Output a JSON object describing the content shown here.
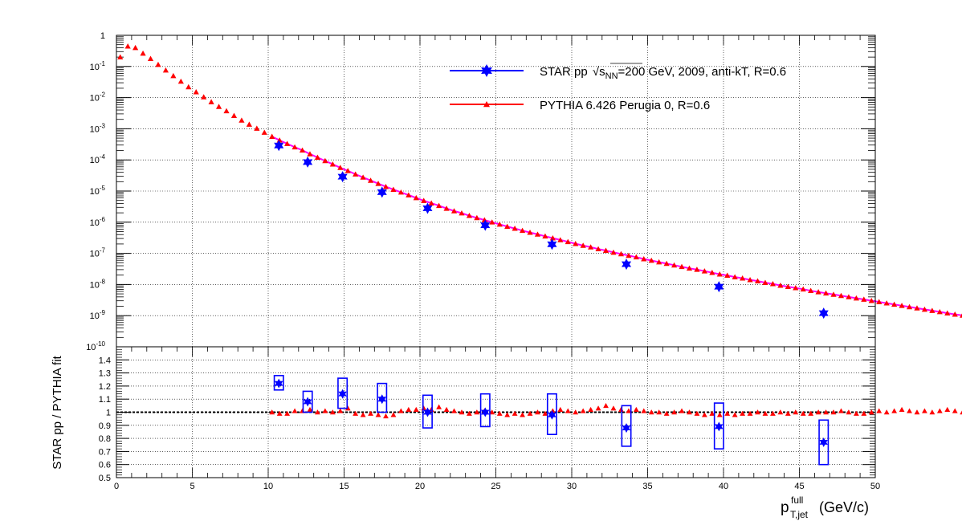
{
  "chart_data": [
    {
      "panel": "top",
      "type": "scatter",
      "title": "",
      "xlabel": "",
      "ylabel": "",
      "xlim": [
        0,
        50
      ],
      "ylim": [
        1e-10,
        1
      ],
      "yscale": "log",
      "grid": true,
      "legend_position": "top-right",
      "y_tick_labels": [
        {
          "value": 1,
          "base": "1",
          "exp": ""
        },
        {
          "value": 0.1,
          "base": "10",
          "exp": "-1"
        },
        {
          "value": 0.01,
          "base": "10",
          "exp": "-2"
        },
        {
          "value": 0.001,
          "base": "10",
          "exp": "-3"
        },
        {
          "value": 0.0001,
          "base": "10",
          "exp": "-4"
        },
        {
          "value": 1e-05,
          "base": "10",
          "exp": "-5"
        },
        {
          "value": 1e-06,
          "base": "10",
          "exp": "-6"
        },
        {
          "value": 1e-07,
          "base": "10",
          "exp": "-7"
        },
        {
          "value": 1e-08,
          "base": "10",
          "exp": "-8"
        },
        {
          "value": 1e-09,
          "base": "10",
          "exp": "-9"
        },
        {
          "value": 1e-10,
          "base": "10",
          "exp": "-10"
        }
      ],
      "legend": [
        {
          "series": "STAR",
          "prefix": "STAR pp ",
          "sqrt_s": "s",
          "sub": "NN",
          "suffix": "=200 GeV, 2009, anti-kT, R=0.6"
        },
        {
          "series": "PYTHIA",
          "label": "PYTHIA 6.426 Perugia 0, R=0.6"
        }
      ],
      "series": [
        {
          "name": "STAR pp 200 GeV 2009",
          "color": "#0000ff",
          "marker": "star",
          "x": [
            10.7,
            12.6,
            14.9,
            17.5,
            20.5,
            24.3,
            28.7,
            33.6,
            39.7,
            46.6
          ],
          "y": [
            0.00029,
            8.5e-05,
            2.9e-05,
            9.2e-06,
            2.8e-06,
            8e-07,
            1.95e-07,
            4.5e-08,
            8.5e-09,
            1.2e-09
          ]
        },
        {
          "name": "PYTHIA 6.426 Perugia 0",
          "color": "#ff0000",
          "line_color": "#ff00ff",
          "marker": "triangle",
          "x_start": 0.25,
          "x_step": 0.5,
          "log_y": [
            -0.7,
            -0.35,
            -0.4,
            -0.58,
            -0.75,
            -0.94,
            -1.12,
            -1.3,
            -1.48,
            -1.66,
            -1.82,
            -1.98,
            -2.14,
            -2.29,
            -2.43,
            -2.58,
            -2.73,
            -2.86,
            -2.99,
            -3.12,
            -3.25,
            -3.37,
            -3.48,
            -3.59,
            -3.69,
            -3.81,
            -3.92,
            -4.03,
            -4.14,
            -4.25,
            -4.35,
            -4.46,
            -4.56,
            -4.66,
            -4.76,
            -4.86,
            -4.95,
            -5.04,
            -5.13,
            -5.22,
            -5.31,
            -5.39,
            -5.47,
            -5.56,
            -5.64,
            -5.71,
            -5.79,
            -5.86,
            -5.93,
            -6.0,
            -6.07,
            -6.14,
            -6.2,
            -6.27,
            -6.33,
            -6.39,
            -6.45,
            -6.51,
            -6.57,
            -6.63,
            -6.69,
            -6.75,
            -6.8,
            -6.86,
            -6.91,
            -6.97,
            -7.02,
            -7.07,
            -7.12,
            -7.18,
            -7.23,
            -7.28,
            -7.33,
            -7.38,
            -7.43,
            -7.48,
            -7.52,
            -7.57,
            -7.62,
            -7.67,
            -7.71,
            -7.76,
            -7.8,
            -7.85,
            -7.89,
            -7.94,
            -7.98,
            -8.03,
            -8.07,
            -8.11,
            -8.15,
            -8.2,
            -8.24,
            -8.28,
            -8.32,
            -8.36,
            -8.4,
            -8.44,
            -8.48,
            -8.52,
            -8.56,
            -8.6,
            -8.64,
            -8.68,
            -8.72,
            -8.76,
            -8.8,
            -8.84,
            -8.88,
            -8.92,
            -8.96,
            -8.99,
            -9.03,
            -9.07,
            -9.11,
            -9.14,
            -9.18,
            -9.22,
            -9.25,
            -9.29
          ]
        }
      ]
    },
    {
      "panel": "ratio",
      "type": "scatter",
      "title": "",
      "xlabel": "(GeV/c)",
      "xlabel_main": "p",
      "xlabel_sup": "full",
      "xlabel_sub": "T,jet",
      "ylabel": "STAR pp / PYTHIA fit",
      "xlim": [
        0,
        50
      ],
      "ylim": [
        0.5,
        1.5
      ],
      "grid": true,
      "reference_line": 1.0,
      "x_ticks": [
        0,
        5,
        10,
        15,
        20,
        25,
        30,
        35,
        40,
        45,
        50
      ],
      "x_tick_labels": [
        "0",
        "5",
        "10",
        "15",
        "20",
        "25",
        "30",
        "35",
        "40",
        "45",
        "50"
      ],
      "y_ticks": [
        0.5,
        0.6,
        0.7,
        0.8,
        0.9,
        1,
        1.1,
        1.2,
        1.3,
        1.4
      ],
      "y_tick_labels": [
        "0.5",
        "0.6",
        "0.7",
        "0.8",
        "0.9",
        "1",
        "1.1",
        "1.2",
        "1.3",
        "1.4"
      ],
      "series": [
        {
          "name": "STAR pp / PYTHIA fit",
          "color": "#0000ff",
          "marker": "star",
          "x": [
            10.7,
            12.6,
            14.9,
            17.5,
            20.5,
            24.3,
            28.7,
            33.6,
            39.7,
            46.6
          ],
          "y": [
            1.22,
            1.08,
            1.14,
            1.1,
            1.0,
            1.0,
            0.98,
            0.88,
            0.89,
            0.77
          ],
          "sys_lo": [
            1.17,
            1.0,
            1.03,
            1.0,
            0.88,
            0.89,
            0.83,
            0.74,
            0.72,
            0.6
          ],
          "sys_hi": [
            1.28,
            1.16,
            1.26,
            1.22,
            1.13,
            1.14,
            1.14,
            1.05,
            1.07,
            0.94
          ],
          "sys_halfwidth_x": 0.3
        },
        {
          "name": "PYTHIA / PYTHIA fit",
          "color": "#ff0000",
          "marker": "triangle",
          "x_start": 10.25,
          "x_step": 0.5,
          "y": [
            1.0,
            0.99,
            0.99,
            1.01,
            1.01,
            1.02,
            1.0,
            1.01,
            1.0,
            1.01,
            1.03,
            0.99,
            0.98,
            0.99,
            0.98,
            0.97,
            0.98,
            1.01,
            1.02,
            1.02,
            1.03,
            1.02,
            1.04,
            1.02,
            1.01,
            1.0,
            0.99,
            1.0,
            1.01,
            1.0,
            0.99,
            0.98,
            0.99,
            0.98,
            0.99,
            1.0,
            0.99,
            1.01,
            1.02,
            1.01,
            1.0,
            1.01,
            1.02,
            1.03,
            1.05,
            1.03,
            1.02,
            1.01,
            1.02,
            1.01,
            1.0,
            1.0,
            0.99,
            1.0,
            1.01,
            1.0,
            0.99,
            0.98,
            0.99,
            0.98,
            0.99,
            0.98,
            0.99,
            0.99,
            1.0,
            0.99,
            0.99,
            1.0,
            0.99,
            1.0,
            0.99,
            0.99,
            1.0,
            1.0,
            1.0,
            1.01,
            1.0,
            0.99,
            0.99,
            1.0,
            1.01,
            1.0,
            1.01,
            1.02,
            1.01,
            1.0,
            1.01,
            1.0,
            1.01,
            1.02,
            1.01,
            1.0,
            1.01,
            1.02,
            1.01,
            1.01,
            1.0,
            1.01,
            1.02,
            1.01,
            1.0,
            1.01,
            1.01,
            1.0,
            1.0,
            1.0,
            1.01,
            1.0,
            0.99,
            1.0,
            0.99,
            0.99,
            0.98,
            0.99,
            0.98,
            0.99,
            0.98,
            0.97,
            0.95
          ]
        }
      ]
    }
  ]
}
